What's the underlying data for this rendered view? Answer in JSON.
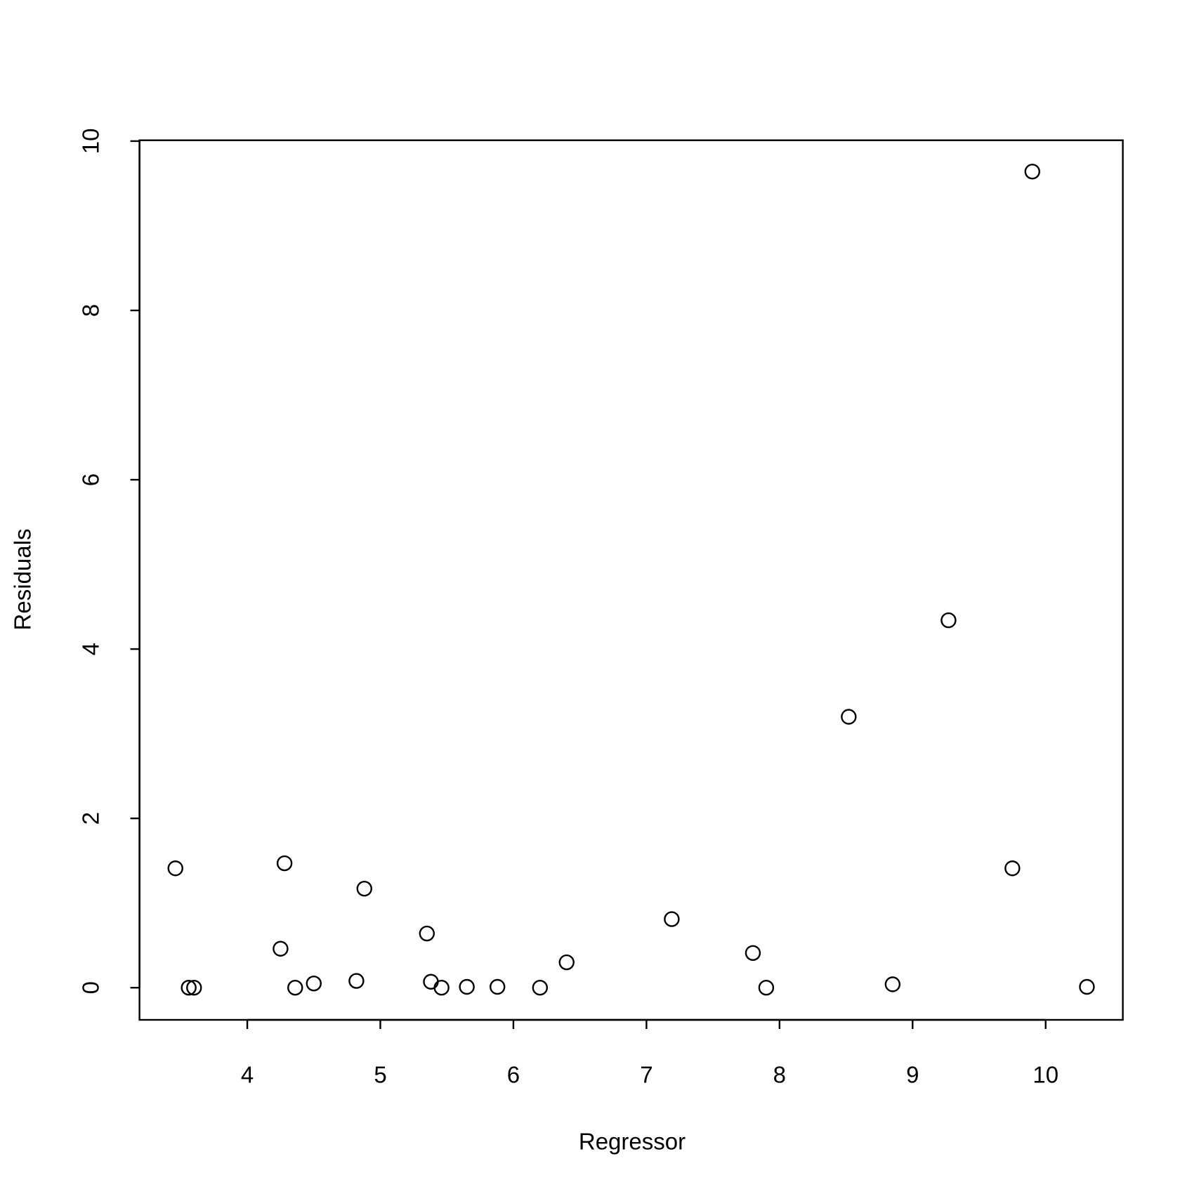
{
  "chart_data": {
    "type": "scatter",
    "xlabel": "Regressor",
    "ylabel": "Residuals",
    "x": [
      3.46,
      3.56,
      3.6,
      4.25,
      4.28,
      4.36,
      4.5,
      4.82,
      4.88,
      5.35,
      5.38,
      5.46,
      5.65,
      5.88,
      6.2,
      6.4,
      7.19,
      7.8,
      7.9,
      8.52,
      8.85,
      9.27,
      9.75,
      9.9,
      10.31
    ],
    "values": [
      1.41,
      0,
      0,
      0.46,
      1.47,
      0,
      0.05,
      0.08,
      1.17,
      0.64,
      0.07,
      0,
      0.01,
      0.01,
      0,
      0.3,
      0.81,
      0.41,
      0,
      3.2,
      0.04,
      4.34,
      1.41,
      9.64,
      0.01
    ],
    "color": "#000000",
    "xlim": [
      3.19,
      10.58
    ],
    "ylim": [
      -0.38,
      10.01
    ],
    "xticks": [
      4,
      5,
      6,
      7,
      8,
      9,
      10
    ],
    "yticks": [
      0,
      2,
      4,
      6,
      8,
      10
    ]
  }
}
